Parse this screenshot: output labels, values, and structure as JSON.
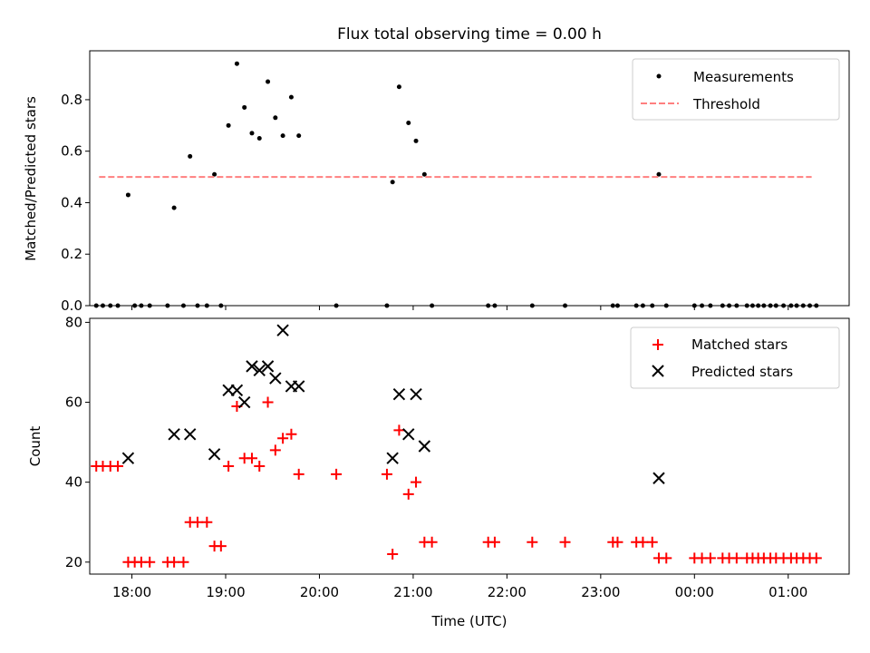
{
  "chart_data": [
    {
      "type": "scatter",
      "title": "Flux total observing time = 0.00 h",
      "xlabel": "",
      "ylabel": "Matched/Predicted stars",
      "xlim": [
        17.55,
        25.65
      ],
      "ylim": [
        0,
        0.99
      ],
      "yticks": [
        0.0,
        0.2,
        0.4,
        0.6,
        0.8
      ],
      "yticklabels": [
        "0.0",
        "0.2",
        "0.4",
        "0.6",
        "0.8"
      ],
      "legend_position": "top-right",
      "series": [
        {
          "name": "Measurements",
          "marker": "dot",
          "color": "#000000",
          "x": [
            17.62,
            17.69,
            17.77,
            17.85,
            17.96,
            18.03,
            18.1,
            18.19,
            18.38,
            18.45,
            18.55,
            18.62,
            18.7,
            18.8,
            18.88,
            18.95,
            19.03,
            19.12,
            19.2,
            19.28,
            19.36,
            19.45,
            19.53,
            19.61,
            19.7,
            19.78,
            20.18,
            20.72,
            20.78,
            20.85,
            20.95,
            21.03,
            21.12,
            21.2,
            21.8,
            21.87,
            22.27,
            22.62,
            23.13,
            23.18,
            23.38,
            23.45,
            23.55,
            23.62,
            23.7,
            24.0,
            24.08,
            24.17,
            24.3,
            24.37,
            24.45,
            24.56,
            24.62,
            24.68,
            24.74,
            24.81,
            24.87,
            24.95,
            25.03,
            25.09,
            25.16,
            25.23,
            25.3
          ],
          "y": [
            0,
            0,
            0,
            0,
            0.43,
            0,
            0,
            0,
            0,
            0.38,
            0,
            0.58,
            0,
            0,
            0.51,
            0,
            0.7,
            0.94,
            0.77,
            0.67,
            0.65,
            0.87,
            0.73,
            0.66,
            0.81,
            0.66,
            0,
            0,
            0.48,
            0.85,
            0.71,
            0.64,
            0.51,
            0,
            0,
            0,
            0,
            0,
            0,
            0,
            0,
            0,
            0,
            0.51,
            0,
            0,
            0,
            0,
            0,
            0,
            0,
            0,
            0,
            0,
            0,
            0,
            0,
            0,
            0,
            0,
            0,
            0,
            0
          ]
        },
        {
          "name": "Threshold",
          "marker": "dashed-line",
          "color": "#ff7f7f",
          "x": [
            17.65,
            25.25
          ],
          "y": [
            0.5,
            0.5
          ]
        }
      ]
    },
    {
      "type": "scatter",
      "title": "",
      "xlabel": "Time (UTC)",
      "ylabel": "Count",
      "xlim": [
        17.55,
        25.65
      ],
      "ylim": [
        17,
        81
      ],
      "yticks": [
        20,
        40,
        60,
        80
      ],
      "yticklabels": [
        "20",
        "40",
        "60",
        "80"
      ],
      "xticks": [
        18,
        19,
        20,
        21,
        22,
        23,
        24,
        25
      ],
      "xticklabels": [
        "18:00",
        "19:00",
        "20:00",
        "21:00",
        "22:00",
        "23:00",
        "00:00",
        "01:00"
      ],
      "legend_position": "top-right",
      "series": [
        {
          "name": "Matched stars",
          "marker": "plus",
          "color": "#ff0000",
          "x": [
            17.62,
            17.69,
            17.77,
            17.85,
            17.96,
            18.03,
            18.1,
            18.19,
            18.38,
            18.45,
            18.55,
            18.62,
            18.7,
            18.8,
            18.88,
            18.95,
            19.03,
            19.12,
            19.2,
            19.28,
            19.36,
            19.45,
            19.53,
            19.61,
            19.7,
            19.78,
            20.18,
            20.72,
            20.78,
            20.85,
            20.95,
            21.03,
            21.12,
            21.2,
            21.8,
            21.87,
            22.27,
            22.62,
            23.13,
            23.18,
            23.38,
            23.45,
            23.55,
            23.62,
            23.7,
            24.0,
            24.08,
            24.17,
            24.3,
            24.37,
            24.45,
            24.56,
            24.62,
            24.68,
            24.74,
            24.81,
            24.87,
            24.95,
            25.03,
            25.09,
            25.16,
            25.23,
            25.3
          ],
          "y": [
            44,
            44,
            44,
            44,
            20,
            20,
            20,
            20,
            20,
            20,
            20,
            30,
            30,
            30,
            24,
            24,
            44,
            59,
            46,
            46,
            44,
            60,
            48,
            51,
            52,
            42,
            42,
            42,
            22,
            53,
            37,
            40,
            25,
            25,
            25,
            25,
            25,
            25,
            25,
            25,
            25,
            25,
            25,
            21,
            21,
            21,
            21,
            21,
            21,
            21,
            21,
            21,
            21,
            21,
            21,
            21,
            21,
            21,
            21,
            21,
            21,
            21,
            21
          ]
        },
        {
          "name": "Predicted stars",
          "marker": "x",
          "color": "#000000",
          "x": [
            17.96,
            18.45,
            18.62,
            18.88,
            19.03,
            19.12,
            19.2,
            19.28,
            19.36,
            19.45,
            19.53,
            19.61,
            19.7,
            19.78,
            20.78,
            20.85,
            20.95,
            21.03,
            21.12,
            23.62
          ],
          "y": [
            46,
            52,
            52,
            47,
            63,
            63,
            60,
            69,
            68,
            69,
            66,
            78,
            64,
            64,
            46,
            62,
            52,
            62,
            49,
            41
          ]
        }
      ]
    }
  ]
}
